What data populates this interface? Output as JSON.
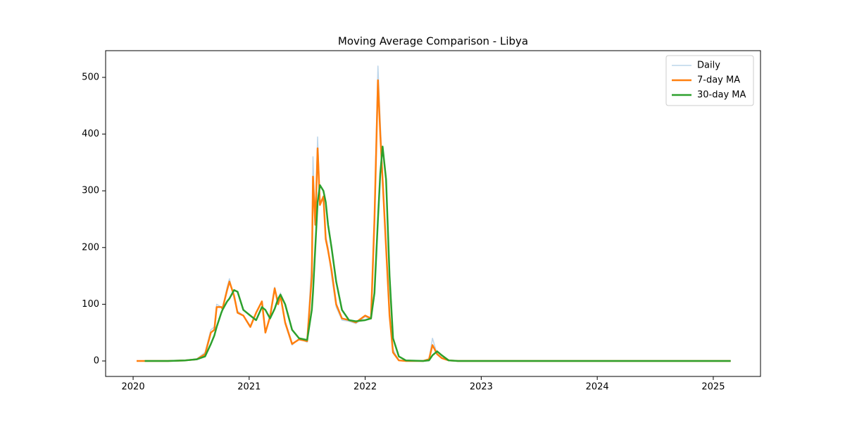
{
  "chart_data": {
    "type": "line",
    "title": "Moving Average Comparison - Libya",
    "x": [
      2020.03,
      2020.1,
      2020.3,
      2020.45,
      2020.55,
      2020.62,
      2020.67,
      2020.7,
      2020.72,
      2020.76,
      2020.77,
      2020.81,
      2020.83,
      2020.87,
      2020.9,
      2020.95,
      2021.01,
      2021.06,
      2021.11,
      2021.14,
      2021.18,
      2021.22,
      2021.25,
      2021.27,
      2021.31,
      2021.37,
      2021.43,
      2021.5,
      2021.54,
      2021.55,
      2021.57,
      2021.59,
      2021.61,
      2021.64,
      2021.66,
      2021.68,
      2021.71,
      2021.75,
      2021.8,
      2021.86,
      2021.92,
      2022.0,
      2022.05,
      2022.08,
      2022.11,
      2022.13,
      2022.15,
      2022.18,
      2022.21,
      2022.24,
      2022.29,
      2022.35,
      2022.5,
      2022.55,
      2022.58,
      2022.62,
      2022.66,
      2022.72,
      2022.8,
      2023.0,
      2024.0,
      2025.15
    ],
    "series": [
      {
        "name": "Daily",
        "color": "#bcd5ea",
        "values": [
          0,
          0,
          0,
          1,
          4,
          15,
          55,
          60,
          100,
          95,
          92,
          130,
          145,
          110,
          88,
          80,
          62,
          85,
          105,
          50,
          80,
          130,
          100,
          120,
          65,
          28,
          40,
          33,
          180,
          360,
          240,
          395,
          280,
          290,
          220,
          200,
          150,
          95,
          72,
          70,
          66,
          78,
          74,
          260,
          520,
          420,
          330,
          200,
          80,
          20,
          1,
          0,
          0,
          3,
          40,
          12,
          5,
          1,
          0,
          0,
          0,
          0
        ]
      },
      {
        "name": "7-day MA",
        "color": "#ff7f0e",
        "values": [
          0,
          0,
          0,
          1,
          3,
          12,
          50,
          55,
          95,
          95,
          92,
          125,
          140,
          115,
          85,
          80,
          60,
          85,
          105,
          50,
          78,
          128,
          100,
          115,
          68,
          30,
          38,
          35,
          150,
          325,
          240,
          375,
          275,
          290,
          215,
          195,
          160,
          100,
          75,
          72,
          68,
          80,
          75,
          250,
          495,
          400,
          320,
          200,
          80,
          15,
          1,
          0,
          0,
          3,
          28,
          12,
          5,
          1,
          0,
          0,
          0,
          0
        ]
      },
      {
        "name": "30-day MA",
        "color": "#2ca02c",
        "values": [
          null,
          0,
          0,
          1,
          3,
          8,
          30,
          45,
          60,
          85,
          90,
          105,
          110,
          125,
          122,
          90,
          80,
          72,
          95,
          90,
          75,
          92,
          110,
          117,
          100,
          55,
          40,
          37,
          90,
          120,
          200,
          280,
          310,
          300,
          280,
          240,
          200,
          140,
          90,
          72,
          70,
          72,
          75,
          120,
          250,
          330,
          378,
          320,
          150,
          40,
          8,
          1,
          0,
          1,
          10,
          17,
          10,
          1,
          0,
          0,
          0,
          0
        ]
      }
    ],
    "xlim": [
      2019.763,
      2025.407
    ],
    "xticks": [
      2020,
      2021,
      2022,
      2023,
      2024,
      2025
    ],
    "ylim": [
      -27.3,
      547.1
    ],
    "yticks": [
      0,
      100,
      200,
      300,
      400,
      500
    ],
    "grid": false,
    "legend": "upper right"
  }
}
